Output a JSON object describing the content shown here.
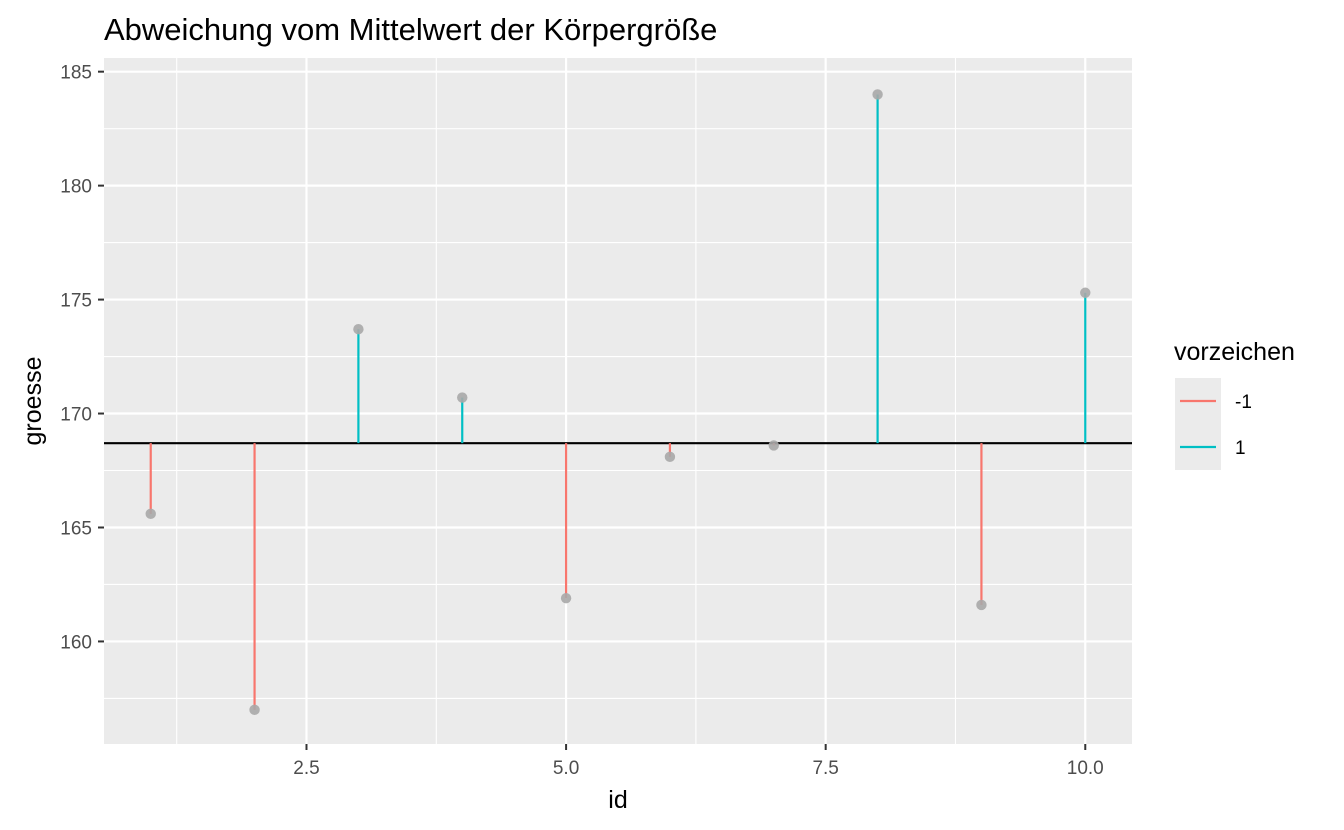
{
  "chart_data": {
    "type": "lollipop",
    "title": "Abweichung vom Mittelwert der Körpergröße",
    "xlabel": "id",
    "ylabel": "groesse",
    "xlim": [
      0.55,
      10.45
    ],
    "ylim": [
      155.5,
      185.6
    ],
    "x_ticks": [
      2.5,
      5.0,
      7.5,
      10.0
    ],
    "x_tick_labels": [
      "2.5",
      "5.0",
      "7.5",
      "10.0"
    ],
    "y_ticks": [
      160,
      165,
      170,
      175,
      180,
      185
    ],
    "y_tick_labels": [
      "160",
      "165",
      "170",
      "175",
      "180",
      "185"
    ],
    "baseline": 168.7,
    "points": [
      {
        "id": 1,
        "groesse": 165.6,
        "vorzeichen": "-1"
      },
      {
        "id": 2,
        "groesse": 157.0,
        "vorzeichen": "-1"
      },
      {
        "id": 3,
        "groesse": 173.7,
        "vorzeichen": "1"
      },
      {
        "id": 4,
        "groesse": 170.7,
        "vorzeichen": "1"
      },
      {
        "id": 5,
        "groesse": 161.9,
        "vorzeichen": "-1"
      },
      {
        "id": 6,
        "groesse": 168.1,
        "vorzeichen": "-1"
      },
      {
        "id": 7,
        "groesse": 168.6,
        "vorzeichen": "-1"
      },
      {
        "id": 8,
        "groesse": 184.0,
        "vorzeichen": "1"
      },
      {
        "id": 9,
        "groesse": 161.6,
        "vorzeichen": "-1"
      },
      {
        "id": 10,
        "groesse": 175.3,
        "vorzeichen": "1"
      }
    ],
    "legend": {
      "title": "vorzeichen",
      "position": "right",
      "entries": [
        {
          "label": "-1",
          "color": "#F8766D"
        },
        {
          "label": "1",
          "color": "#00BFC4"
        }
      ]
    },
    "colors": {
      "panel_background": "#EBEBEB",
      "grid_major": "#FFFFFF",
      "baseline": "#000000",
      "point": "#A9A9A9"
    },
    "grid": true
  }
}
